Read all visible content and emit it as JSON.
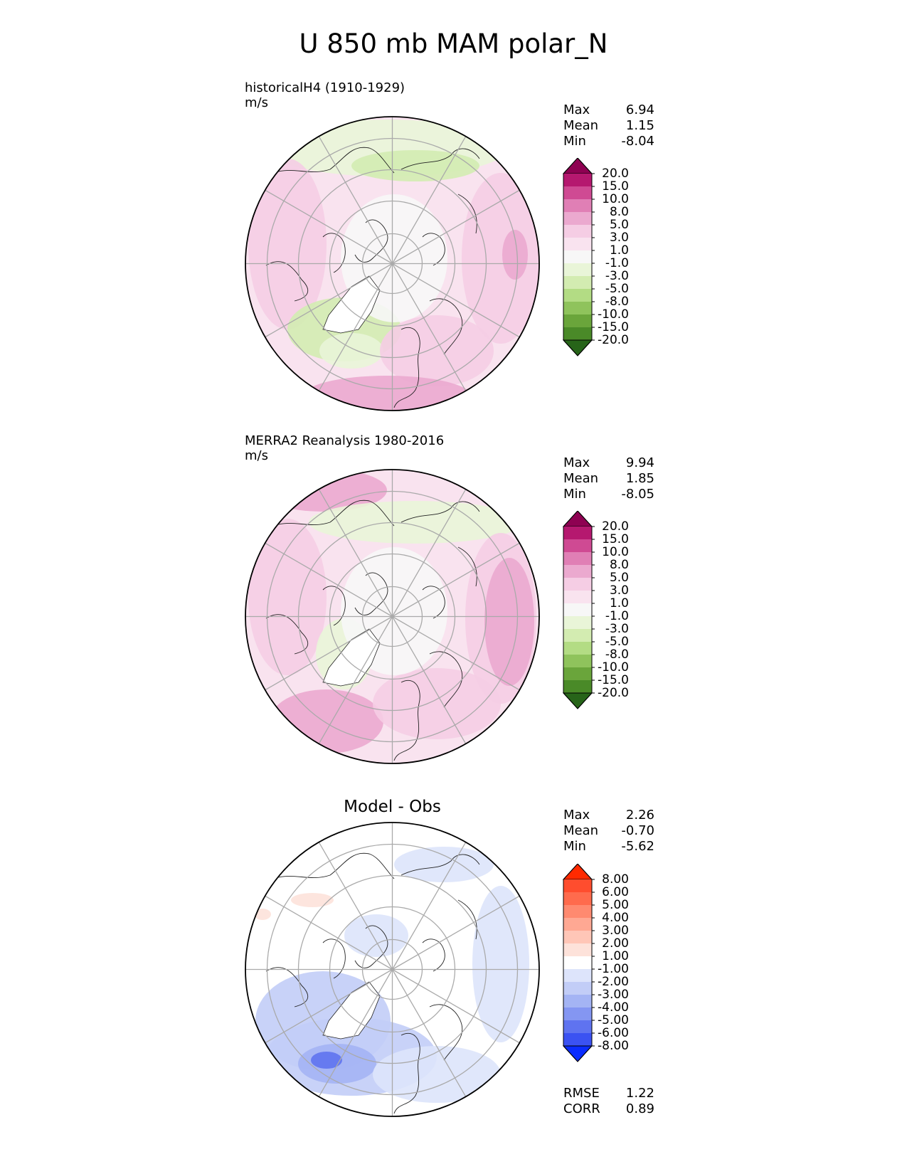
{
  "figure": {
    "title": "U 850 mb MAM polar_N"
  },
  "panels": [
    {
      "title_line1": "historicalH4 (1910-1929)",
      "title_line2": "m/s",
      "stats": {
        "max_label": "Max",
        "max": "6.94",
        "mean_label": "Mean",
        "mean": "1.15",
        "min_label": "Min",
        "min": "-8.04"
      },
      "colorbar": {
        "ticks": [
          "20.0",
          "15.0",
          "10.0",
          "8.0",
          "5.0",
          "3.0",
          "1.0",
          "-1.0",
          "-3.0",
          "-5.0",
          "-8.0",
          "-10.0",
          "-15.0",
          "-20.0"
        ],
        "colors": [
          "#8e0152",
          "#b5186f",
          "#cf4a93",
          "#e07fb5",
          "#eba9cf",
          "#f5cde4",
          "#f9e3ef",
          "#f7f7f7",
          "#e9f5d8",
          "#d3ecb1",
          "#b3dc84",
          "#8fc35c",
          "#6aa53b",
          "#4a8a28",
          "#276419"
        ]
      }
    },
    {
      "title_line1": "MERRA2 Reanalysis 1980-2016",
      "title_line2": "m/s",
      "stats": {
        "max_label": "Max",
        "max": "9.94",
        "mean_label": "Mean",
        "mean": "1.85",
        "min_label": "Min",
        "min": "-8.05"
      },
      "colorbar": {
        "ticks": [
          "20.0",
          "15.0",
          "10.0",
          "8.0",
          "5.0",
          "3.0",
          "1.0",
          "-1.0",
          "-3.0",
          "-5.0",
          "-8.0",
          "-10.0",
          "-15.0",
          "-20.0"
        ],
        "colors": [
          "#8e0152",
          "#b5186f",
          "#cf4a93",
          "#e07fb5",
          "#eba9cf",
          "#f5cde4",
          "#f9e3ef",
          "#f7f7f7",
          "#e9f5d8",
          "#d3ecb1",
          "#b3dc84",
          "#8fc35c",
          "#6aa53b",
          "#4a8a28",
          "#276419"
        ]
      }
    },
    {
      "title": "Model - Obs",
      "stats": {
        "max_label": "Max",
        "max": "2.26",
        "mean_label": "Mean",
        "mean": "-0.70",
        "min_label": "Min",
        "min": "-5.62"
      },
      "metrics": {
        "rmse_label": "RMSE",
        "rmse": "1.22",
        "corr_label": "CORR",
        "corr": "0.89"
      },
      "colorbar": {
        "ticks": [
          "8.00",
          "6.00",
          "5.00",
          "4.00",
          "3.00",
          "2.00",
          "1.00",
          "-1.00",
          "-2.00",
          "-3.00",
          "-4.00",
          "-5.00",
          "-6.00",
          "-8.00"
        ],
        "colors": [
          "#ff2a00",
          "#ff4d2e",
          "#ff6b4d",
          "#ff8a70",
          "#ffa893",
          "#ffc6b7",
          "#fde2da",
          "#ffffff",
          "#dde4fb",
          "#c2cdf7",
          "#a4b4f4",
          "#8496f2",
          "#5f73f0",
          "#3b52f2",
          "#0a2cff"
        ]
      }
    }
  ],
  "chart_data": [
    {
      "type": "heatmap",
      "projection": "north polar stereographic",
      "title": "historicalH4 (1910-1929)",
      "units": "m/s",
      "stats": {
        "max": 6.94,
        "mean": 1.15,
        "min": -8.04
      },
      "levels": [
        -20,
        -15,
        -10,
        -8,
        -5,
        -3,
        -1,
        1,
        3,
        5,
        8,
        10,
        15,
        20
      ],
      "extend": "both"
    },
    {
      "type": "heatmap",
      "projection": "north polar stereographic",
      "title": "MERRA2 Reanalysis 1980-2016",
      "units": "m/s",
      "stats": {
        "max": 9.94,
        "mean": 1.85,
        "min": -8.05
      },
      "levels": [
        -20,
        -15,
        -10,
        -8,
        -5,
        -3,
        -1,
        1,
        3,
        5,
        8,
        10,
        15,
        20
      ],
      "extend": "both"
    },
    {
      "type": "heatmap",
      "projection": "north polar stereographic",
      "title": "Model - Obs",
      "stats": {
        "max": 2.26,
        "mean": -0.7,
        "min": -5.62,
        "rmse": 1.22,
        "corr": 0.89
      },
      "levels": [
        -8,
        -6,
        -5,
        -4,
        -3,
        -2,
        -1,
        1,
        2,
        3,
        4,
        5,
        6,
        8
      ],
      "extend": "both"
    }
  ]
}
